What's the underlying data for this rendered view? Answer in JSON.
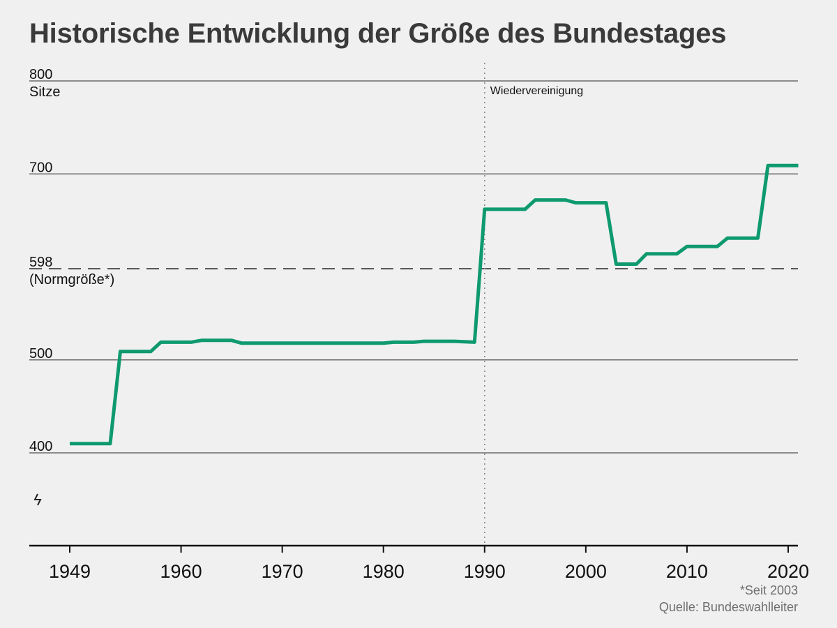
{
  "title": "Historische Entwicklung der Größe des Bundestages",
  "footnote": "*Seit 2003",
  "source": "Quelle: Bundeswahlleiter",
  "colors": {
    "line": "#0e9a6e",
    "grid": "#6b6b6b",
    "text": "#111111"
  },
  "chart_data": {
    "type": "line",
    "title": "Historische Entwicklung der Größe des Bundestages",
    "xlabel": "",
    "ylabel": "Sitze",
    "xlim": [
      1945,
      2021
    ],
    "ylim": [
      300,
      800
    ],
    "y_axis_break": true,
    "x_ticks": [
      1949,
      1960,
      1970,
      1980,
      1990,
      2000,
      2010,
      2020
    ],
    "y_ticks": [
      {
        "value": 800,
        "label": "800",
        "sublabel": "Sitze"
      },
      {
        "value": 700,
        "label": "700",
        "sublabel": ""
      },
      {
        "value": 598,
        "label": "598",
        "sublabel": "(Normgröße*)"
      },
      {
        "value": 500,
        "label": "500",
        "sublabel": ""
      },
      {
        "value": 400,
        "label": "400",
        "sublabel": ""
      }
    ],
    "reference_line": {
      "value": 598,
      "style": "dashed"
    },
    "annotations": [
      {
        "x": 1990,
        "label": "Wiedervereinigung",
        "style": "dotted-vertical"
      }
    ],
    "series": [
      {
        "x": [
          1949,
          1953,
          1954,
          1957,
          1958,
          1961,
          1962,
          1965,
          1966,
          1969,
          1980,
          1981,
          1983,
          1984,
          1987,
          1989,
          1990,
          1994,
          1995,
          1998,
          1999,
          2002,
          2003,
          2005,
          2006,
          2009,
          2010,
          2013,
          2014,
          2017,
          2018,
          2021
        ],
        "y": [
          410,
          410,
          509,
          509,
          519,
          519,
          521,
          521,
          518,
          518,
          518,
          519,
          519,
          520,
          520,
          519,
          662,
          662,
          672,
          672,
          669,
          669,
          603,
          603,
          614,
          614,
          622,
          622,
          631,
          631,
          709,
          709
        ]
      }
    ]
  }
}
